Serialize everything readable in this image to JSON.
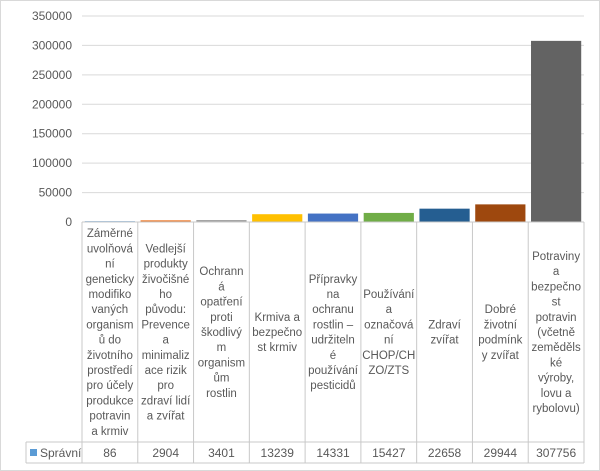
{
  "chart_data": {
    "type": "bar",
    "title": "",
    "xlabel": "",
    "ylabel": "",
    "ylim": [
      0,
      350000
    ],
    "yticks": [
      0,
      50000,
      100000,
      150000,
      200000,
      250000,
      300000,
      350000
    ],
    "y_tick_labels": [
      "0",
      "50000",
      "100000",
      "150000",
      "200000",
      "250000",
      "300000",
      "350000"
    ],
    "grid": true,
    "legend": "bottom-left (data table)",
    "categories": [
      [
        "Záměrné",
        "uvolňová",
        "ní",
        "geneticky",
        "modifiko",
        "vaných",
        "organism",
        "ů do",
        "životního",
        "prostředí",
        "pro účely",
        "produkce",
        "potravin",
        "a krmiv"
      ],
      [
        "Vedlejší",
        "produkty",
        "živočišné",
        "ho",
        "původu:",
        "Prevence",
        "a",
        "minimaliz",
        "ace rizik",
        "pro",
        "zdraví lidí",
        "a zvířat"
      ],
      [
        "Ochrann",
        "á",
        "opatření",
        "proti",
        "škodlivý",
        "m",
        "organism",
        "ům",
        "rostlin"
      ],
      [
        "Krmiva a",
        "bezpečno",
        "st krmiv"
      ],
      [
        "Přípravky",
        "na",
        "ochranu",
        "rostlin –",
        "udržiteln",
        "é",
        "používání",
        "pesticidů"
      ],
      [
        "Používání",
        "a",
        "označová",
        "ní",
        "CHOP/CH",
        "ZO/ZTS"
      ],
      [
        "Zdraví",
        "zvířat"
      ],
      [
        "Dobré",
        "životní",
        "podmínk",
        "y zvířat"
      ],
      [
        "Potraviny",
        "a",
        "bezpečno",
        "st",
        "potravin",
        "(včetně",
        "zeměděls",
        "ké",
        "výroby,",
        "lovu a",
        "rybolovu)"
      ]
    ],
    "series": [
      {
        "name": "Správní",
        "values": [
          86,
          2904,
          3401,
          13239,
          14331,
          15427,
          22658,
          29944,
          307756
        ],
        "value_labels": [
          "86",
          "2904",
          "3401",
          "13239",
          "14331",
          "15427",
          "22658",
          "29944",
          "307756"
        ]
      }
    ],
    "bar_colors": [
      "#5b9bd5",
      "#ed7d31",
      "#a5a5a5",
      "#ffc000",
      "#4472c4",
      "#70ad47",
      "#255e91",
      "#9e480e",
      "#636363"
    ],
    "legend_key_color": "#5b9bd5"
  }
}
